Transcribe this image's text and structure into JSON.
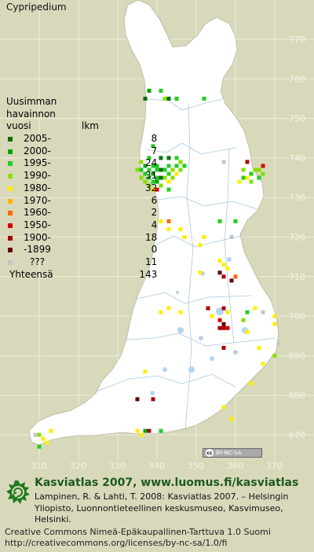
{
  "title": "Cypripedium",
  "axes": {
    "y_ticks": [
      "770",
      "760",
      "750",
      "740",
      "730",
      "720",
      "710",
      "700",
      "690",
      "680",
      "670"
    ],
    "x_ticks": [
      "310",
      "320",
      "330",
      "340",
      "350",
      "360",
      "370"
    ]
  },
  "legend": {
    "heading": [
      "Uusimman",
      "havainnon",
      "vuosi"
    ],
    "count_header": "lkm",
    "items": [
      {
        "period": "2005-",
        "count": "8",
        "color": "#007000"
      },
      {
        "period": "2000-",
        "count": "7",
        "color": "#00a400"
      },
      {
        "period": "1995-",
        "count": "24",
        "color": "#22cc22"
      },
      {
        "period": "1990-",
        "count": "31",
        "color": "#88e000"
      },
      {
        "period": "1980-",
        "count": "32",
        "color": "#ffee00"
      },
      {
        "period": "1970-",
        "count": "6",
        "color": "#ffb300"
      },
      {
        "period": "1960-",
        "count": "2",
        "color": "#ff6600"
      },
      {
        "period": "1950-",
        "count": "4",
        "color": "#dd0000"
      },
      {
        "period": "1900-",
        "count": "18",
        "color": "#aa0000"
      },
      {
        "period": "-1899",
        "count": "0",
        "color": "#660000"
      },
      {
        "period": "???",
        "count": "11",
        "color": "#c4c4c4"
      }
    ],
    "total_label": "Yhteensä",
    "total_count": "143"
  },
  "license_badge": "BY-NC-SA",
  "license_badge_cc": "cc",
  "footer": {
    "headline": "Kasviatlas 2007, www.luomus.fi/kasviatlas",
    "citation": "Lampinen, R. & Lahti, T. 2008: Kasviatlas 2007. – Helsingin Yliopisto, Luonnontieteellinen keskusmuseo, Kasvimuseo, Helsinki.",
    "license": "Creative Commons Nimeä-Epäkaupallinen-Tarttuva 1.0 Suomi http://creativecommons.org/licenses/by-nc-sa/1.0/fi"
  }
}
